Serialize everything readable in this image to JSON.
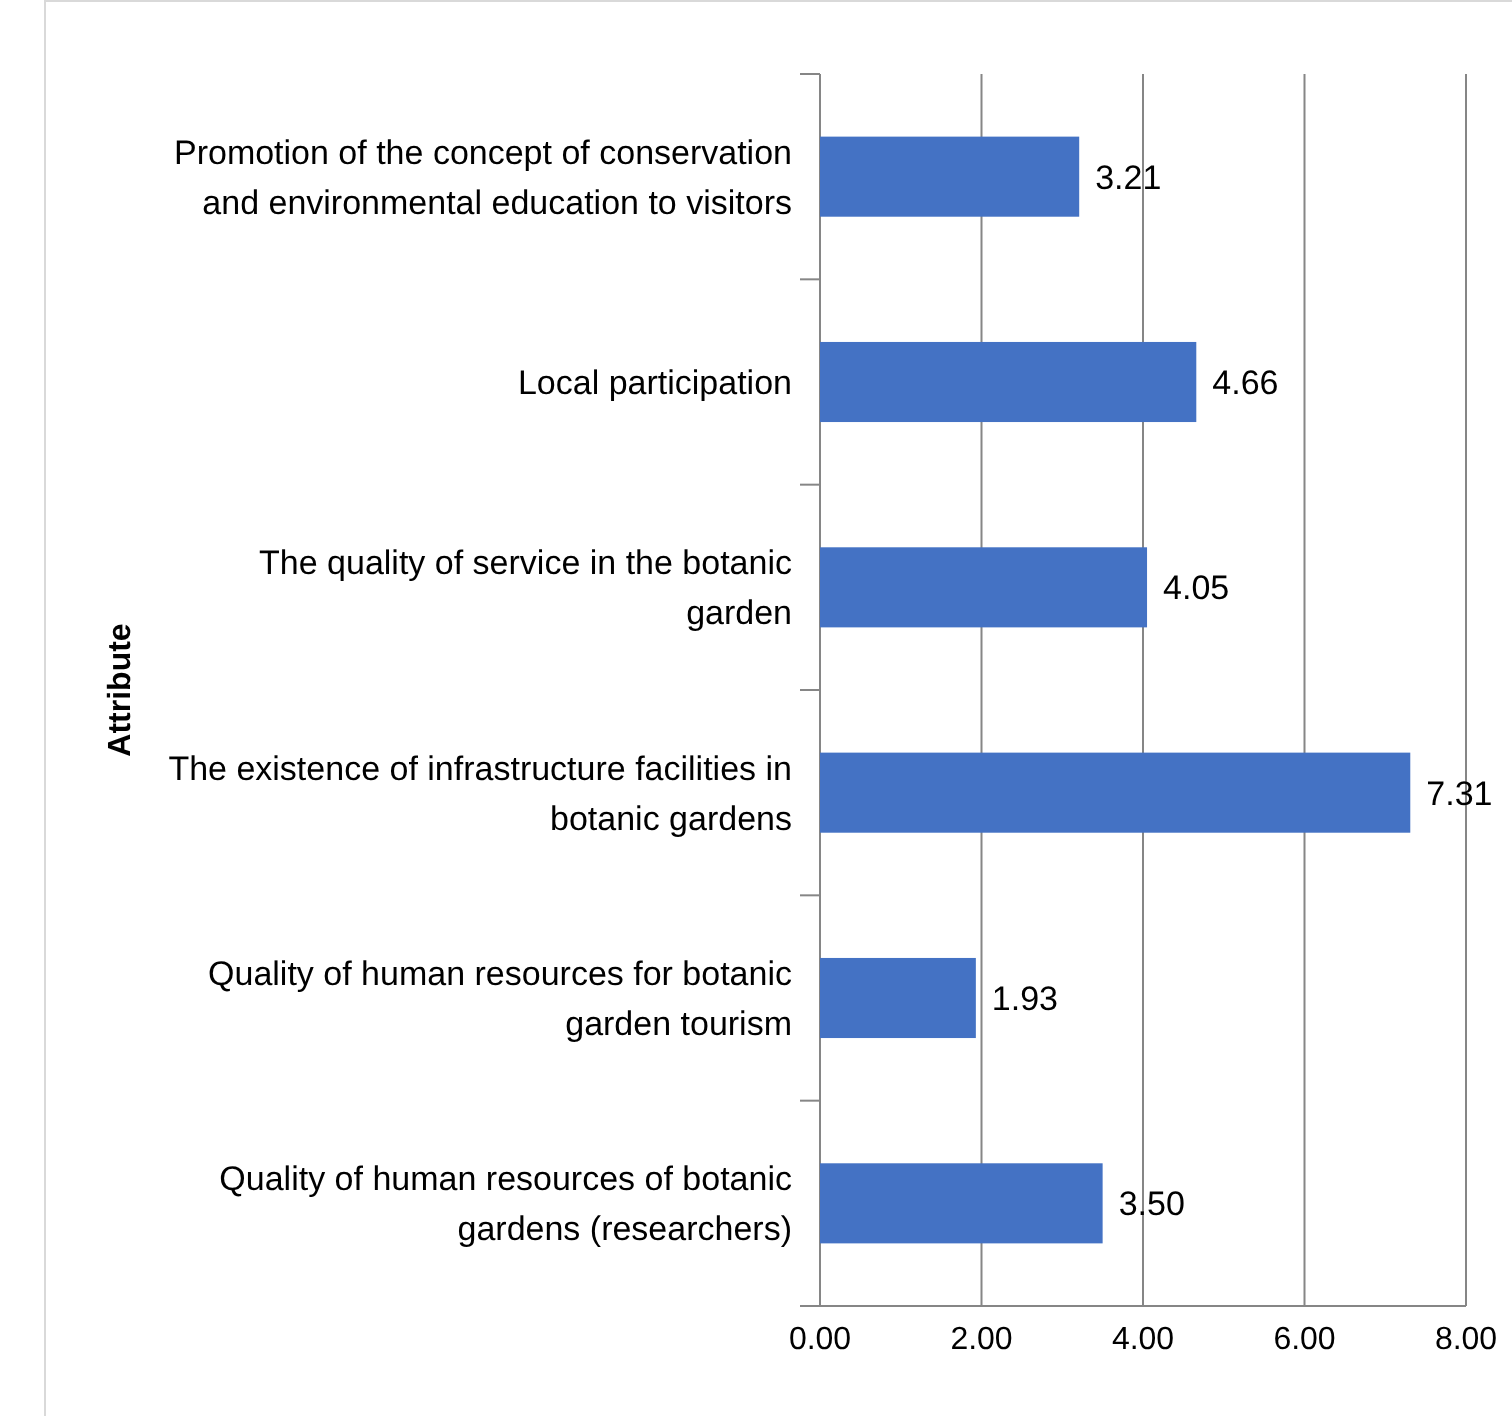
{
  "chart_data": {
    "type": "bar",
    "orientation": "horizontal",
    "ylabel": "Attribute",
    "categories": [
      "Promotion of the concept of conservation and environmental education to visitors",
      "Local participation",
      "The quality of service in the botanic garden",
      "The existence of infrastructure facilities in botanic gardens",
      "Quality of human resources for botanic garden tourism",
      "Quality of human resources of botanic gardens (researchers)"
    ],
    "values": [
      3.21,
      4.66,
      4.05,
      7.31,
      1.93,
      3.5
    ],
    "value_labels": [
      "3.21",
      "4.66",
      "4.05",
      "7.31",
      "1.93",
      "3.50"
    ],
    "color": "#4472c4",
    "xlim": [
      0,
      8
    ],
    "xticks": [
      {
        "value": 0,
        "label": "0.00"
      },
      {
        "value": 2,
        "label": "2.00"
      },
      {
        "value": 4,
        "label": "4.00"
      },
      {
        "value": 6,
        "label": "6.00"
      },
      {
        "value": 8,
        "label": "8.00"
      }
    ],
    "grid": "x"
  }
}
